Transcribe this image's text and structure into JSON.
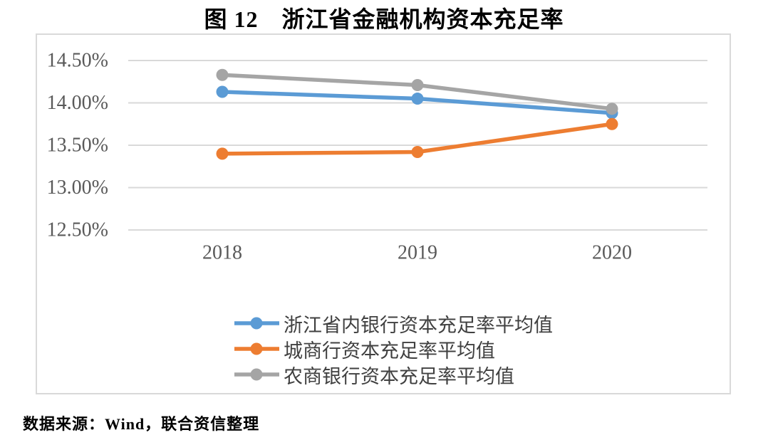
{
  "title": "图 12　浙江省金融机构资本充足率",
  "source": "数据来源：Wind，联合资信整理",
  "colors": {
    "grid": "#D9D9D9",
    "frame_border": "#D9D9D9",
    "axis_text": "#595959",
    "legend_text": "#404040"
  },
  "chart_data": {
    "type": "line",
    "categories": [
      "2018",
      "2019",
      "2020"
    ],
    "series": [
      {
        "name": "浙江省内银行资本充足率平均值",
        "color": "#5B9BD5",
        "values": [
          14.13,
          14.05,
          13.88
        ]
      },
      {
        "name": "城商行资本充足率平均值",
        "color": "#ED7D31",
        "values": [
          13.4,
          13.42,
          13.75
        ]
      },
      {
        "name": "农商银行资本充足率平均值",
        "color": "#A5A5A5",
        "values": [
          14.33,
          14.21,
          13.93
        ]
      }
    ],
    "y_ticks": [
      "14.50%",
      "14.00%",
      "13.50%",
      "13.00%",
      "12.50%"
    ],
    "y_tick_values": [
      14.5,
      14.0,
      13.5,
      13.0,
      12.5
    ],
    "ylim": [
      12.5,
      14.5
    ],
    "grid": true,
    "legend_position": "bottom",
    "marker": "circle"
  }
}
